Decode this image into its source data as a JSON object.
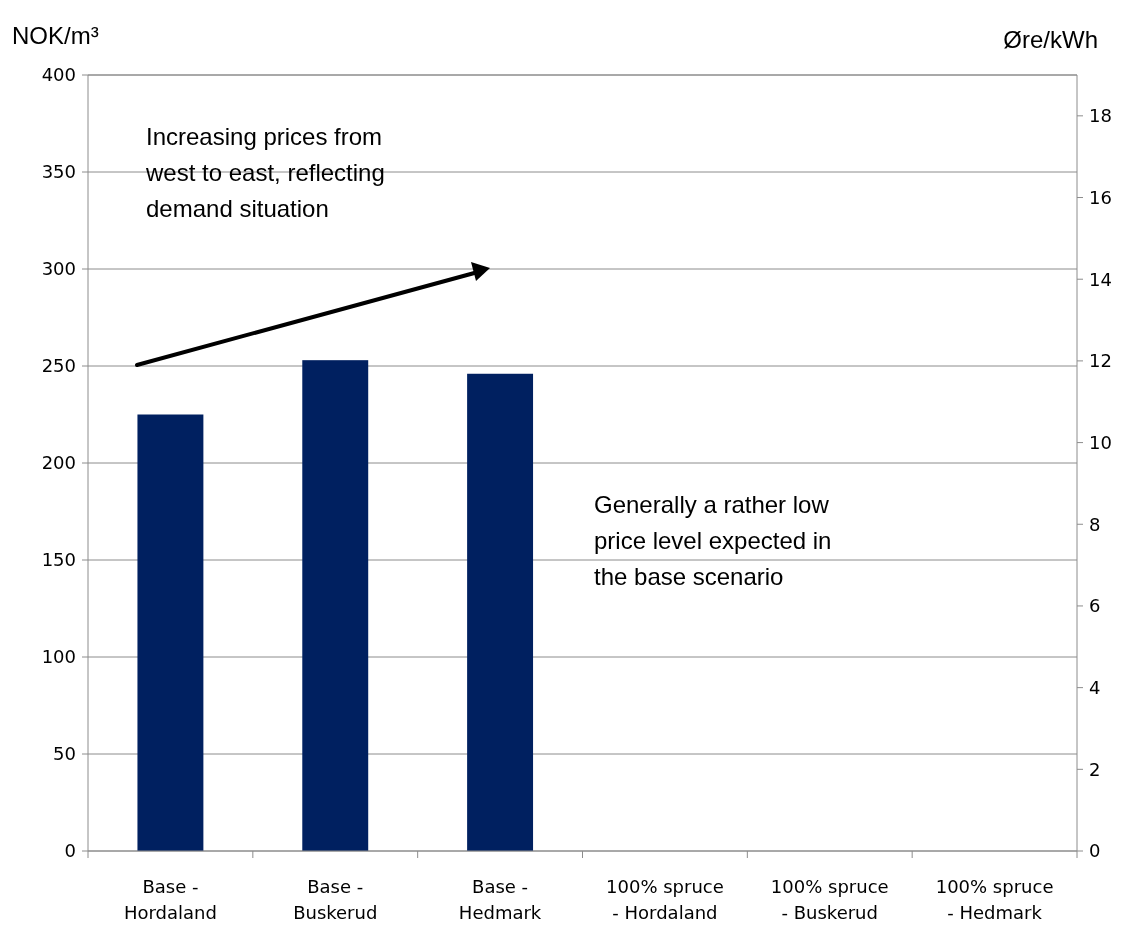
{
  "chart_data": {
    "type": "bar",
    "ylabel": "NOK/m³",
    "y2label": "Øre/kWh",
    "categories": [
      "Base -\nHordaland",
      "Base -\nBuskerud",
      "Base -\nHedmark",
      "100% spruce\n- Hordaland",
      "100% spruce\n- Buskerud",
      "100% spruce\n- Hedmark"
    ],
    "values": [
      225,
      253,
      246,
      null,
      null,
      null
    ],
    "color": "#002060",
    "ylim": [
      0,
      400
    ],
    "yticks": [
      0,
      50,
      100,
      150,
      200,
      250,
      300,
      350,
      400
    ],
    "y2lim": [
      0,
      19
    ],
    "y2ticks": [
      0,
      2,
      4,
      6,
      8,
      10,
      12,
      14,
      16,
      18
    ],
    "grid": "y",
    "annotations": [
      "Increasing prices from\nwest to east, reflecting\ndemand situation",
      "Generally a rather low\nprice level expected in\nthe base scenario"
    ]
  }
}
